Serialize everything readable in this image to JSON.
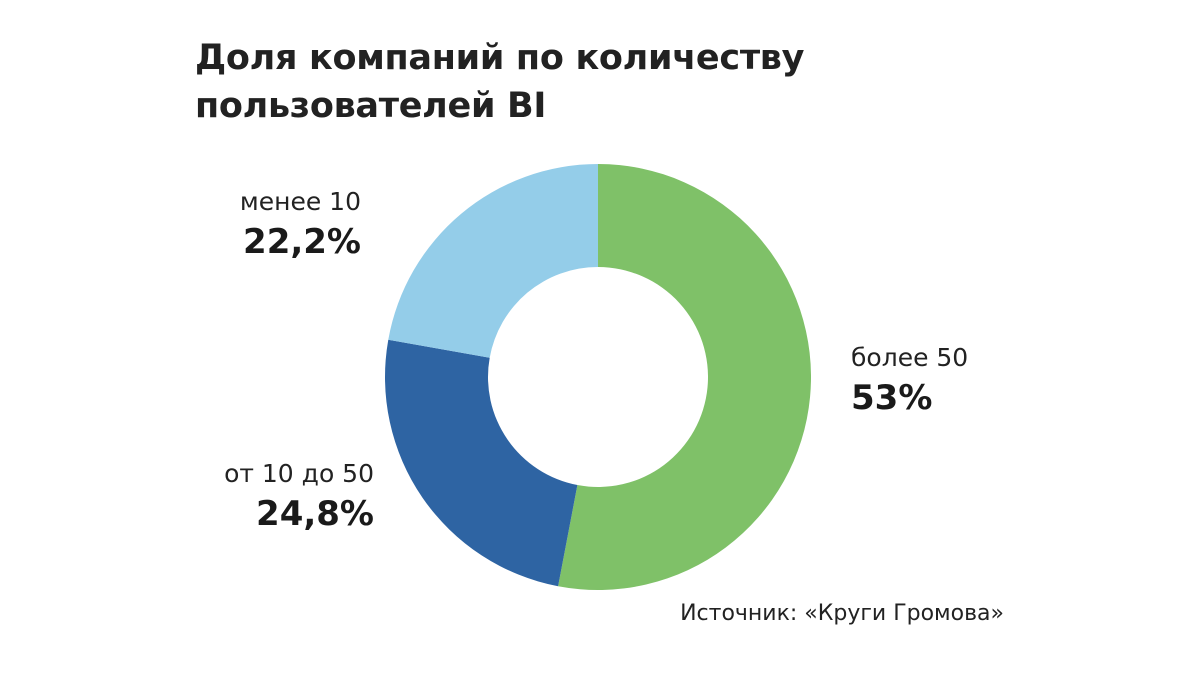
{
  "chart_data": {
    "type": "pie",
    "variant": "donut",
    "title_lines": [
      "Доля компаний по количеству",
      "пользователей BI"
    ],
    "categories": [
      "более 50",
      "от 10 до 50",
      "менее 10"
    ],
    "values": [
      53,
      24.8,
      22.2
    ],
    "value_labels": [
      "53%",
      "24,8%",
      "22,2%"
    ],
    "colors": [
      "#7fc168",
      "#2e64a3",
      "#94cde9"
    ],
    "start": "12 o'clock",
    "direction": "clockwise",
    "legend": "none",
    "source": "Источник: «Круги Громова»"
  }
}
